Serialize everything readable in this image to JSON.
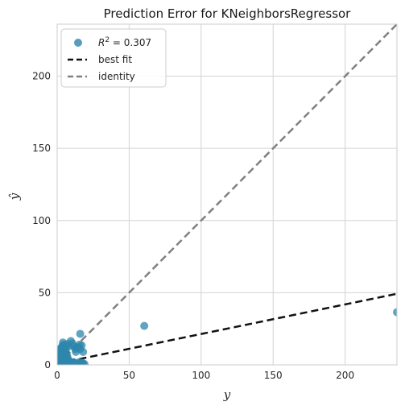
{
  "chart_data": {
    "type": "scatter",
    "title": "Prediction Error for KNeighborsRegressor",
    "xlabel": "y",
    "ylabel": "ŷ",
    "xlim": [
      0,
      236
    ],
    "ylim": [
      0,
      236
    ],
    "x_ticks": [
      0,
      50,
      100,
      150,
      200
    ],
    "y_ticks": [
      0,
      50,
      100,
      150,
      200
    ],
    "x_tick_labels": [
      "0",
      "50",
      "100",
      "150",
      "200"
    ],
    "y_tick_labels": [
      "0",
      "50",
      "100",
      "150",
      "200"
    ],
    "grid": true,
    "legend": {
      "location": "upper-left",
      "entries": [
        {
          "id": "scatter",
          "label": "R² = 0.307",
          "label_prefix": "R",
          "label_sup": "2",
          "label_rest": " = 0.307"
        },
        {
          "id": "best_fit",
          "label": "best fit"
        },
        {
          "id": "identity",
          "label": "identity"
        }
      ]
    },
    "colors": {
      "points": "#2e86ab",
      "best_fit": "#111111",
      "identity": "#808080",
      "grid": "#d3d3d3",
      "frame": "#cccccc"
    },
    "best_fit": {
      "slope": 0.205,
      "intercept": 0.9
    },
    "points": [
      [
        0.5,
        0.5
      ],
      [
        1,
        1.5
      ],
      [
        1.5,
        3
      ],
      [
        2,
        5
      ],
      [
        2.5,
        8
      ],
      [
        3,
        11
      ],
      [
        3.5,
        13
      ],
      [
        4,
        15.5
      ],
      [
        4.5,
        14
      ],
      [
        5,
        12
      ],
      [
        5.5,
        10
      ],
      [
        6,
        9
      ],
      [
        6.5,
        7
      ],
      [
        7,
        6
      ],
      [
        7.5,
        4
      ],
      [
        8,
        3
      ],
      [
        8.5,
        2
      ],
      [
        9,
        1
      ],
      [
        2,
        1
      ],
      [
        3,
        2
      ],
      [
        4,
        3
      ],
      [
        5,
        4
      ],
      [
        6,
        1.5
      ],
      [
        7,
        0.8
      ],
      [
        1.2,
        6
      ],
      [
        2.2,
        9
      ],
      [
        3.2,
        12
      ],
      [
        4.2,
        10
      ],
      [
        5.2,
        8
      ],
      [
        6.2,
        12
      ],
      [
        7.2,
        14.5
      ],
      [
        8.2,
        13
      ],
      [
        9.5,
        16.5
      ],
      [
        10.5,
        15
      ],
      [
        11.5,
        13
      ],
      [
        12.5,
        11
      ],
      [
        13,
        9
      ],
      [
        14,
        12
      ],
      [
        15.5,
        14
      ],
      [
        16,
        11
      ],
      [
        17,
        13.5
      ],
      [
        18,
        9
      ],
      [
        16,
        21.5
      ],
      [
        10,
        1
      ],
      [
        11,
        2
      ],
      [
        12,
        0.8
      ],
      [
        14,
        1.5
      ],
      [
        15,
        0.6
      ],
      [
        16,
        2
      ],
      [
        17,
        1
      ],
      [
        18,
        1.2
      ],
      [
        19,
        0.5
      ],
      [
        3.5,
        0.5
      ],
      [
        6.5,
        0.3
      ],
      [
        1.8,
        11
      ],
      [
        2.8,
        7
      ],
      [
        60.5,
        27
      ],
      [
        236,
        36.5
      ]
    ]
  }
}
